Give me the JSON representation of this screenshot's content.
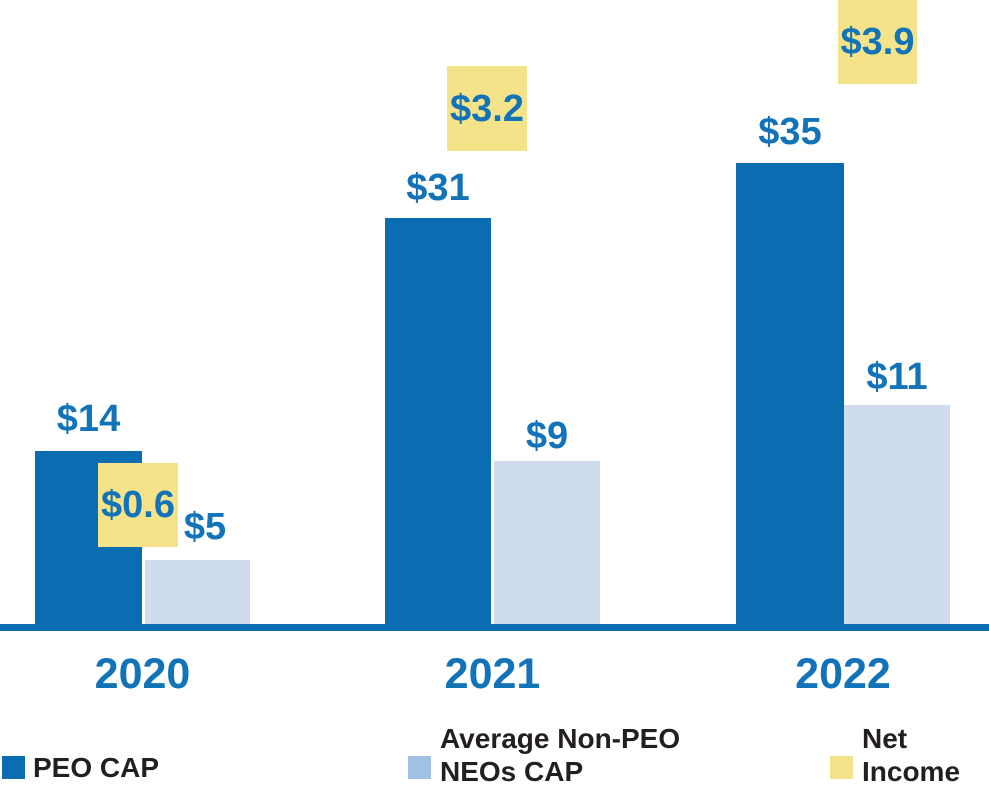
{
  "chart_data": {
    "type": "bar",
    "title": "",
    "categories": [
      "2020",
      "2021",
      "2022"
    ],
    "series": [
      {
        "name": "PEO CAP",
        "values": [
          14,
          31,
          35
        ],
        "color": "#0a6cb1",
        "value_labels": [
          "$14",
          "$31",
          "$35"
        ]
      },
      {
        "name": "Average Non-PEO NEOs CAP",
        "values": [
          5,
          9,
          11
        ],
        "color": "#cfdcee",
        "value_labels": [
          "$5",
          "$9",
          "$11"
        ]
      },
      {
        "name": "Net Income",
        "values": [
          0.6,
          3.2,
          3.9
        ],
        "color": "#f5e38a",
        "value_labels": [
          "$0.6",
          "$3.2",
          "$3.9"
        ]
      }
    ],
    "xlabel": "",
    "ylabel": "",
    "grid": false,
    "y_axis_shown": false,
    "legend_position": "bottom",
    "notes": "Net Income values shown as floating yellow squares above/beside bars; no y-axis scale shown"
  },
  "groups": [
    {
      "year": "2020",
      "peo": "$14",
      "neo": "$5",
      "net": "$0.6"
    },
    {
      "year": "2021",
      "peo": "$31",
      "neo": "$9",
      "net": "$3.2"
    },
    {
      "year": "2022",
      "peo": "$35",
      "neo": "$11",
      "net": "$3.9"
    }
  ],
  "legend": {
    "peo": "PEO CAP",
    "neo_line1": "Average Non-PEO",
    "neo_line2": "NEOs CAP",
    "net_line1": "Net",
    "net_line2": "Income"
  },
  "colors": {
    "peo_bar": "#0a6cb1",
    "neo_bar": "#cfdcee",
    "net_box": "#f5e38a",
    "legend_neo_swatch": "#9fc2e4",
    "value_text": "#1273b8",
    "legend_text": "#231f20",
    "axis": "#0a6cb1"
  }
}
